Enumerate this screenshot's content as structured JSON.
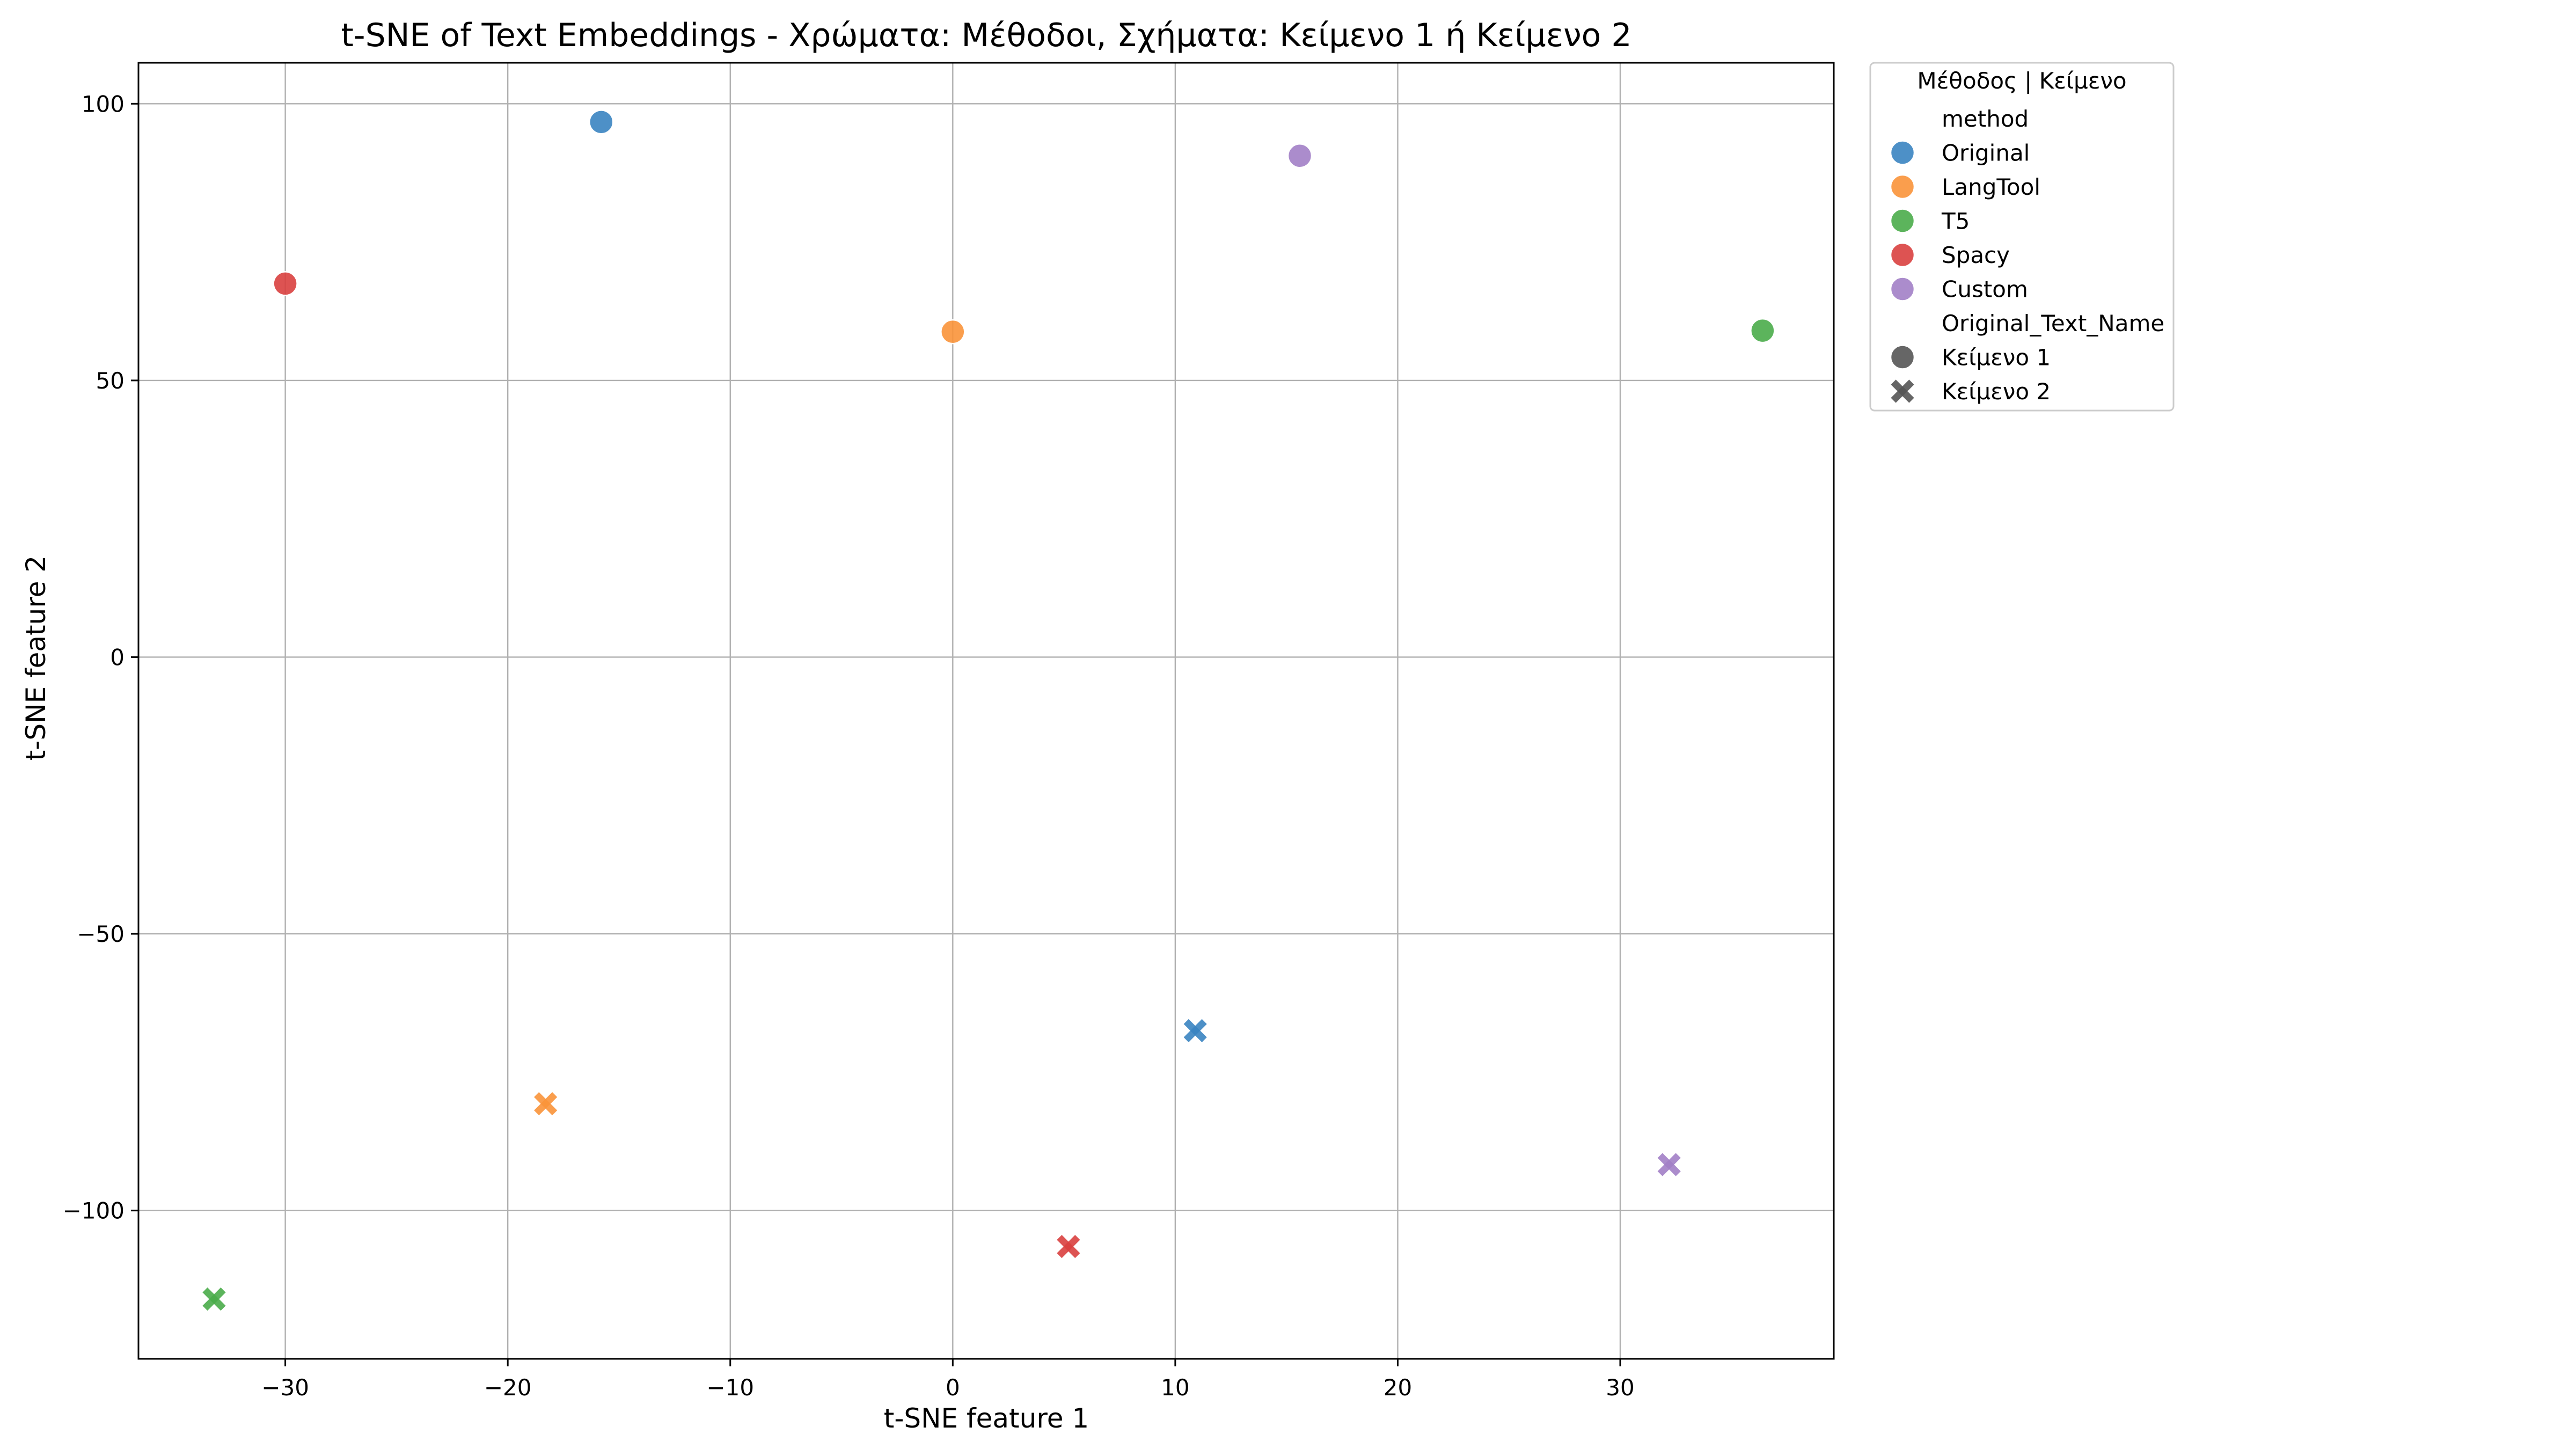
{
  "chart_data": {
    "type": "scatter",
    "title": "t-SNE of Text Embeddings - Χρώματα: Μέθοδοι, Σχήματα: Κείμενο 1 ή Κείμενο 2",
    "xlabel": "t-SNE feature 1",
    "ylabel": "t-SNE feature 2",
    "xlim": [
      -36.6,
      39.6
    ],
    "ylim": [
      -126.8,
      107.4
    ],
    "xticks": [
      -30,
      -20,
      -10,
      0,
      10,
      20,
      30
    ],
    "yticks": [
      -100,
      -50,
      0,
      50,
      100
    ],
    "xtick_labels": [
      "−30",
      "−20",
      "−10",
      "0",
      "10",
      "20",
      "30"
    ],
    "ytick_labels": [
      "−100",
      "−50",
      "0",
      "50",
      "100"
    ],
    "grid": true,
    "legend": {
      "placement": "outside-top-right",
      "title": "Μέθοδος | Κείμενο",
      "hue_title": "method",
      "style_title": "Original_Text_Name",
      "styles": [
        {
          "name": "Κείμενο 1",
          "marker": "circle"
        },
        {
          "name": "Κείμενο 2",
          "marker": "x"
        }
      ]
    },
    "series": [
      {
        "name": "Original",
        "color": "#3a84c1",
        "points": [
          {
            "x": -15.8,
            "y": 96.7,
            "text": "Κείμενο 1"
          },
          {
            "x": 10.9,
            "y": -67.5,
            "text": "Κείμενο 2"
          }
        ]
      },
      {
        "name": "LangTool",
        "color": "#f9943a",
        "points": [
          {
            "x": 0.0,
            "y": 58.8,
            "text": "Κείμενο 1"
          },
          {
            "x": -18.3,
            "y": -80.7,
            "text": "Κείμενο 2"
          }
        ]
      },
      {
        "name": "T5",
        "color": "#4aac4a",
        "points": [
          {
            "x": 36.4,
            "y": 59.0,
            "text": "Κείμενο 1"
          },
          {
            "x": -33.2,
            "y": -116.0,
            "text": "Κείμενο 2"
          }
        ]
      },
      {
        "name": "Spacy",
        "color": "#d9403f",
        "points": [
          {
            "x": -30.0,
            "y": 67.5,
            "text": "Κείμενο 1"
          },
          {
            "x": 5.2,
            "y": -106.5,
            "text": "Κείμενο 2"
          }
        ]
      },
      {
        "name": "Custom",
        "color": "#a27fc6",
        "points": [
          {
            "x": 15.6,
            "y": 90.6,
            "text": "Κείμενο 1"
          },
          {
            "x": 32.2,
            "y": -91.7,
            "text": "Κείμενο 2"
          }
        ]
      }
    ],
    "legend_marker_color": "#555555"
  }
}
